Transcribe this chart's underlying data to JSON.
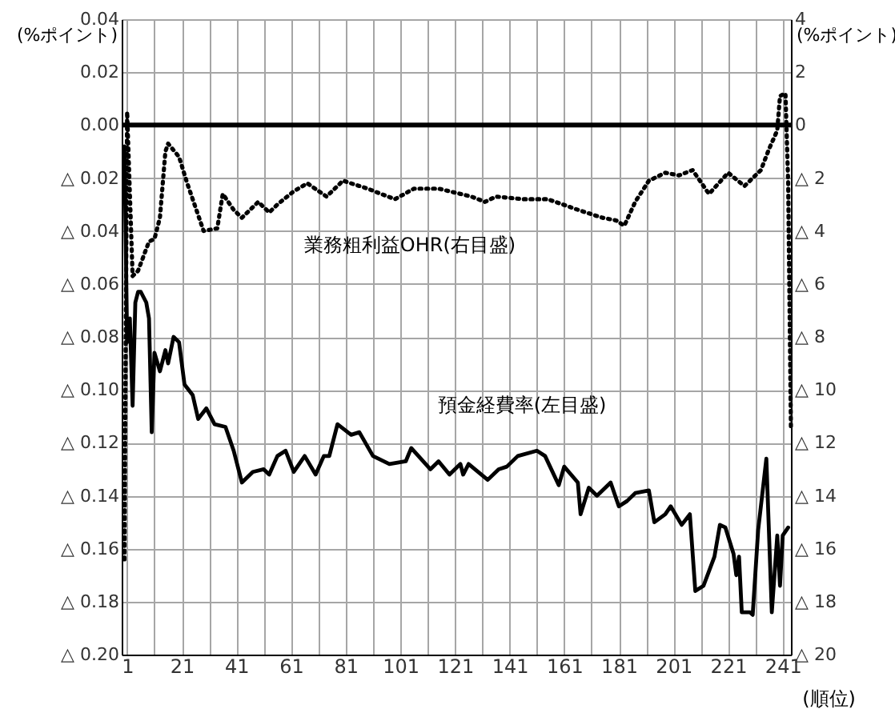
{
  "chart_data": {
    "type": "line",
    "xlabel": "(順位)",
    "ylabel": "(%ポイント)",
    "y2label": "(%ポイント)",
    "xlim": [
      -1,
      244
    ],
    "xticks": [
      1,
      {
        "value": 11,
        "label": null
      },
      21,
      {
        "value": 31,
        "label": null
      },
      41,
      {
        "value": 51,
        "label": null
      },
      61,
      {
        "value": 71,
        "label": null
      },
      81,
      {
        "value": 91,
        "label": null
      },
      101,
      {
        "value": 111,
        "label": null
      },
      121,
      {
        "value": 131,
        "label": null
      },
      141,
      {
        "value": 151,
        "label": null
      },
      161,
      {
        "value": 171,
        "label": null
      },
      181,
      {
        "value": 191,
        "label": null
      },
      201,
      {
        "value": 211,
        "label": null
      },
      221,
      {
        "value": 231,
        "label": null
      },
      241
    ],
    "ylim": [
      -0.2,
      0.04
    ],
    "yticks": [
      0.04,
      0.02,
      {
        "value": 0,
        "label": "0.00"
      },
      {
        "value": -0.02,
        "label": "△ 0.02"
      },
      {
        "value": -0.04,
        "label": "△ 0.04"
      },
      {
        "value": -0.06,
        "label": "△ 0.06"
      },
      {
        "value": -0.08,
        "label": "△ 0.08"
      },
      {
        "value": -0.1,
        "label": "△ 0.10"
      },
      {
        "value": -0.12,
        "label": "△ 0.12"
      },
      {
        "value": -0.14,
        "label": "△ 0.14"
      },
      {
        "value": -0.16,
        "label": "△ 0.16"
      },
      {
        "value": -0.18,
        "label": "△ 0.18"
      },
      {
        "value": -0.2,
        "label": "△ 0.20"
      }
    ],
    "y2lim": [
      -20,
      4
    ],
    "y2ticks": [
      4,
      2,
      0,
      {
        "value": -2,
        "label": "△ 2"
      },
      {
        "value": -4,
        "label": "△ 4"
      },
      {
        "value": -6,
        "label": "△ 6"
      },
      {
        "value": -8,
        "label": "△ 8"
      },
      {
        "value": -10,
        "label": "△ 10"
      },
      {
        "value": -12,
        "label": "△ 12"
      },
      {
        "value": -14,
        "label": "△ 14"
      },
      {
        "value": -16,
        "label": "△ 16"
      },
      {
        "value": -18,
        "label": "△ 18"
      },
      {
        "value": -20,
        "label": "△ 20"
      }
    ],
    "grid": true,
    "legend": false,
    "marker": "none",
    "ref_lines": [
      {
        "axis": "y",
        "value": 0,
        "color": "#000000"
      }
    ],
    "series": [
      {
        "name": "業務粗利益OHR(右目盛)",
        "axis": "y2",
        "color": "#000000",
        "line_style": "dotted",
        "x": [
          0,
          1,
          3,
          5,
          9,
          11,
          13,
          15,
          16,
          20,
          23,
          29,
          34,
          36,
          40,
          43,
          49,
          53,
          56,
          62,
          67,
          74,
          80,
          89,
          99,
          106,
          115,
          123,
          127,
          132,
          136,
          146,
          155,
          166,
          175,
          180,
          183,
          187,
          192,
          198,
          203,
          208,
          214,
          221,
          227,
          233,
          236,
          239,
          240,
          242,
          243,
          244
        ],
        "values": [
          -16.4,
          0.5,
          -5.7,
          -5.5,
          -4.4,
          -4.3,
          -3.5,
          -1.0,
          -0.7,
          -1.2,
          -2.2,
          -4.0,
          -3.9,
          -2.6,
          -3.2,
          -3.5,
          -2.9,
          -3.3,
          -3.0,
          -2.5,
          -2.2,
          -2.7,
          -2.1,
          -2.4,
          -2.8,
          -2.4,
          -2.4,
          -2.6,
          -2.7,
          -2.9,
          -2.7,
          -2.8,
          -2.8,
          -3.2,
          -3.5,
          -3.6,
          -3.8,
          -2.9,
          -2.1,
          -1.8,
          -1.9,
          -1.7,
          -2.6,
          -1.8,
          -2.3,
          -1.7,
          -0.9,
          -0.2,
          1.1,
          1.2,
          -2.2,
          -11.4
        ]
      },
      {
        "name": "預金経費率(左目盛)",
        "axis": "y",
        "color": "#000000",
        "line_style": "solid",
        "x": [
          0,
          1,
          2,
          3,
          4,
          5,
          6,
          8,
          9,
          10,
          11,
          13,
          15,
          16,
          18,
          20,
          22,
          25,
          27,
          30,
          33,
          37,
          40,
          43,
          47,
          51,
          53,
          56,
          59,
          62,
          66,
          70,
          73,
          75,
          78,
          83,
          86,
          91,
          97,
          103,
          105,
          112,
          115,
          119,
          123,
          124,
          126,
          133,
          137,
          140,
          144,
          151,
          154,
          159,
          161,
          166,
          167,
          170,
          173,
          178,
          181,
          184,
          187,
          192,
          194,
          198,
          200,
          204,
          207,
          209,
          212,
          216,
          218,
          220,
          223,
          224,
          225,
          226,
          229,
          230,
          232,
          235,
          237,
          239,
          240,
          241,
          243
        ],
        "values": [
          -0.008,
          -0.082,
          -0.073,
          -0.106,
          -0.067,
          -0.063,
          -0.063,
          -0.067,
          -0.073,
          -0.116,
          -0.086,
          -0.093,
          -0.085,
          -0.09,
          -0.08,
          -0.082,
          -0.098,
          -0.102,
          -0.111,
          -0.107,
          -0.113,
          -0.114,
          -0.123,
          -0.135,
          -0.131,
          -0.13,
          -0.132,
          -0.125,
          -0.123,
          -0.131,
          -0.125,
          -0.132,
          -0.125,
          -0.125,
          -0.113,
          -0.117,
          -0.116,
          -0.125,
          -0.128,
          -0.127,
          -0.122,
          -0.13,
          -0.127,
          -0.132,
          -0.128,
          -0.132,
          -0.128,
          -0.134,
          -0.13,
          -0.129,
          -0.125,
          -0.123,
          -0.125,
          -0.136,
          -0.129,
          -0.135,
          -0.147,
          -0.137,
          -0.14,
          -0.135,
          -0.144,
          -0.142,
          -0.139,
          -0.138,
          -0.15,
          -0.147,
          -0.144,
          -0.151,
          -0.147,
          -0.176,
          -0.174,
          -0.163,
          -0.151,
          -0.152,
          -0.162,
          -0.17,
          -0.163,
          -0.184,
          -0.184,
          -0.185,
          -0.153,
          -0.126,
          -0.184,
          -0.155,
          -0.174,
          -0.155,
          -0.152
        ]
      }
    ]
  }
}
